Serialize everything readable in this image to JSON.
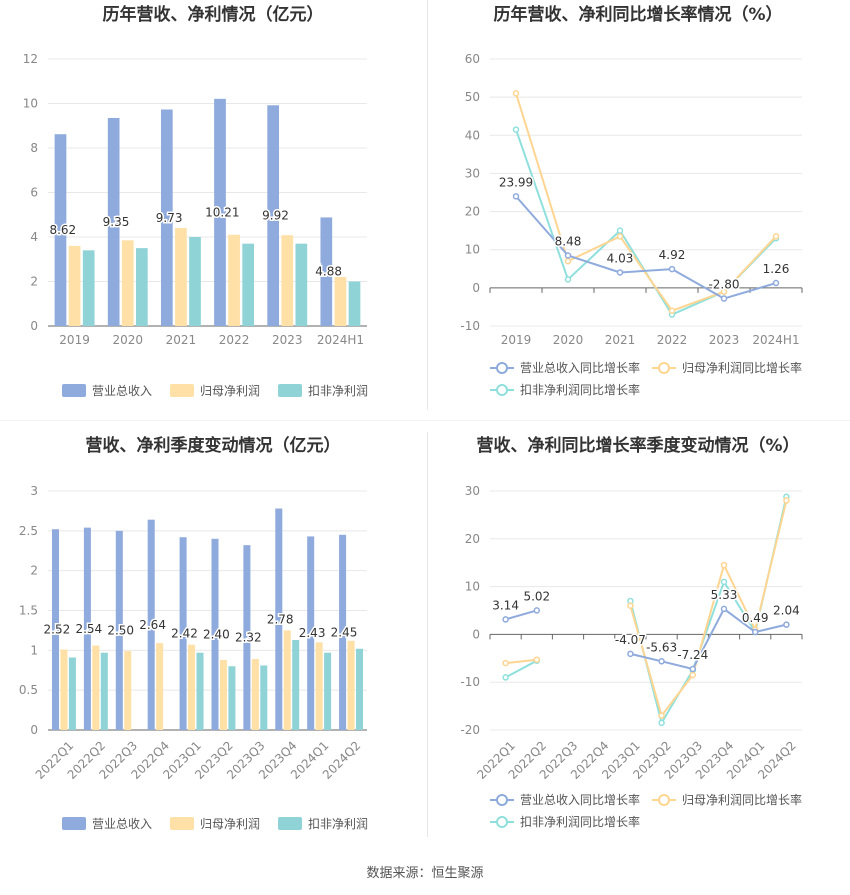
{
  "source_note": "数据来源：恒生聚源",
  "colors": {
    "revenue": "#8faadc",
    "parent_profit": "#ffe0a6",
    "nonrecurring_profit": "#8fd3d6",
    "revenue_line": "#8faadc",
    "parent_line": "#ffd591",
    "nonrec_line": "#8fe0dd",
    "axis_text": "#888888",
    "grid": "#e8e8e8"
  },
  "chart_data": [
    {
      "id": "annual-bar",
      "type": "bar",
      "title": "历年营收、净利情况（亿元）",
      "categories": [
        "2019",
        "2020",
        "2021",
        "2022",
        "2023",
        "2024H1"
      ],
      "ylim": [
        0,
        12
      ],
      "yticks": [
        0,
        2,
        4,
        6,
        8,
        10,
        12
      ],
      "series": [
        {
          "name": "营业总收入",
          "values": [
            8.62,
            9.35,
            9.73,
            10.21,
            9.92,
            4.88
          ],
          "labels": [
            "8.62",
            "9.35",
            "9.73",
            "10.21",
            "9.92",
            "4.88"
          ]
        },
        {
          "name": "归母净利润",
          "values": [
            3.6,
            3.85,
            4.4,
            4.1,
            4.08,
            2.2
          ]
        },
        {
          "name": "扣非净利润",
          "values": [
            3.4,
            3.5,
            4.0,
            3.7,
            3.7,
            2.0
          ]
        }
      ]
    },
    {
      "id": "annual-line",
      "type": "line",
      "title": "历年营收、净利同比增长率情况（%）",
      "categories": [
        "2019",
        "2020",
        "2021",
        "2022",
        "2023",
        "2024H1"
      ],
      "ylim": [
        -10,
        60
      ],
      "yticks": [
        -10,
        0,
        10,
        20,
        30,
        40,
        50,
        60
      ],
      "series": [
        {
          "name": "营业总收入同比增长率",
          "values": [
            23.99,
            8.48,
            4.03,
            4.92,
            -2.8,
            1.26
          ],
          "labels": [
            "23.99",
            "8.48",
            "4.03",
            "4.92",
            "-2.80",
            "1.26"
          ]
        },
        {
          "name": "归母净利润同比增长率",
          "values": [
            51,
            7,
            13.5,
            -6,
            -1,
            13.5
          ]
        },
        {
          "name": "扣非净利润同比增长率",
          "values": [
            41.5,
            2.2,
            15,
            -7,
            -1,
            13
          ]
        }
      ]
    },
    {
      "id": "quarter-bar",
      "type": "bar",
      "title": "营收、净利季度变动情况（亿元）",
      "categories": [
        "2022Q1",
        "2022Q2",
        "2022Q3",
        "2022Q4",
        "2023Q1",
        "2023Q2",
        "2023Q3",
        "2023Q4",
        "2024Q1",
        "2024Q2"
      ],
      "ylim": [
        0,
        3
      ],
      "yticks": [
        0,
        0.5,
        1,
        1.5,
        2,
        2.5,
        3
      ],
      "series": [
        {
          "name": "营业总收入",
          "values": [
            2.52,
            2.54,
            2.5,
            2.64,
            2.42,
            2.4,
            2.32,
            2.78,
            2.43,
            2.45
          ],
          "labels": [
            "2.52",
            "2.54",
            "2.50",
            "2.64",
            "2.42",
            "2.40",
            "2.32",
            "2.78",
            "2.43",
            "2.45"
          ]
        },
        {
          "name": "归母净利润",
          "values": [
            1.01,
            1.06,
            0.99,
            1.09,
            1.07,
            0.88,
            0.89,
            1.25,
            1.1,
            1.12
          ]
        },
        {
          "name": "扣非净利润",
          "values": [
            0.91,
            0.97,
            null,
            null,
            0.97,
            0.8,
            0.81,
            1.13,
            0.97,
            1.02
          ]
        }
      ]
    },
    {
      "id": "quarter-line",
      "type": "line",
      "title": "营收、净利同比增长率季度变动情况（%）",
      "categories": [
        "2022Q1",
        "2022Q2",
        "2022Q3",
        "2022Q4",
        "2023Q1",
        "2023Q2",
        "2023Q3",
        "2023Q4",
        "2024Q1",
        "2024Q2"
      ],
      "ylim": [
        -20,
        30
      ],
      "yticks": [
        -20,
        -10,
        0,
        10,
        20,
        30
      ],
      "series": [
        {
          "name": "营业总收入同比增长率",
          "values": [
            3.14,
            5.02,
            null,
            null,
            -4.07,
            -5.63,
            -7.24,
            5.33,
            0.49,
            2.04
          ],
          "labels": [
            "3.14",
            "5.02",
            "",
            "",
            "-4.07",
            "-5.63",
            "-7.24",
            "5.33",
            "0.49",
            "2.04"
          ]
        },
        {
          "name": "归母净利润同比增长率",
          "values": [
            -6,
            -5.3,
            null,
            null,
            6,
            -17,
            -8.5,
            14.5,
            1,
            28
          ]
        },
        {
          "name": "扣非净利润同比增长率",
          "values": [
            -9,
            -5.5,
            null,
            null,
            7,
            -18.5,
            -7.5,
            11,
            0.5,
            28.8
          ]
        }
      ]
    }
  ]
}
